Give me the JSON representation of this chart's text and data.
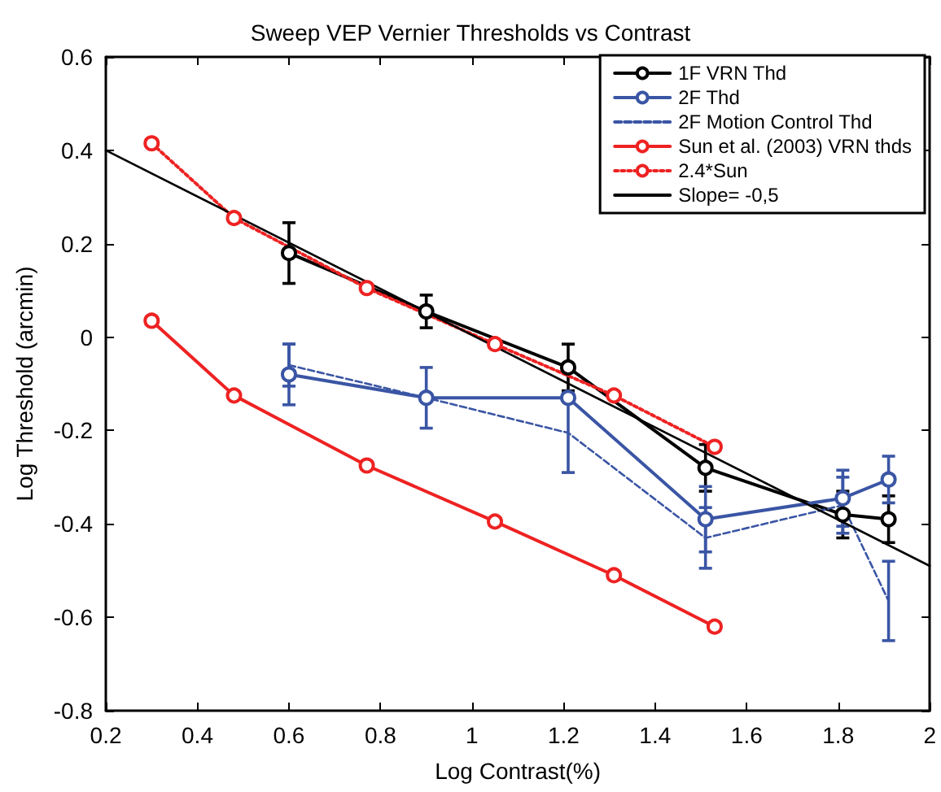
{
  "chart_data": {
    "type": "line",
    "title": "Sweep VEP Vernier Thresholds vs Contrast",
    "xlabel": "Log Contrast(%)",
    "ylabel": "Log Threshold (arcmin)",
    "xlim": [
      0.2,
      2
    ],
    "xticks": [
      0.2,
      0.4,
      0.6,
      0.8,
      1,
      1.2,
      1.4,
      1.6,
      1.8,
      2
    ],
    "ylim": [
      -0.8,
      0.6
    ],
    "yticks": [
      -0.8,
      -0.6,
      -0.4,
      -0.2,
      0,
      0.2,
      0.4,
      0.6
    ],
    "grid": false,
    "legend": "top right",
    "marker": "circle",
    "line_style": "solid",
    "series": [
      {
        "name": "1F VRN Thd",
        "color": "#000000",
        "x": [
          0.6,
          0.9,
          1.21,
          1.51,
          1.81,
          1.91
        ],
        "values": [
          0.18,
          0.055,
          -0.065,
          -0.28,
          -0.38,
          -0.39
        ],
        "errors": [
          0.065,
          0.035,
          0.05,
          0.05,
          0.05,
          0.05
        ]
      },
      {
        "name": "2F Thd",
        "color": "#3a55a4",
        "x": [
          0.6,
          0.9,
          1.21,
          1.51,
          1.81,
          1.91
        ],
        "values": [
          -0.08,
          -0.13,
          -0.13,
          -0.39,
          -0.345,
          -0.305
        ],
        "errors": [
          0.065,
          0.065,
          null,
          0.07,
          0.06,
          0.05
        ]
      },
      {
        "name": "2F Motion Control Thd",
        "color": "#3a55a4",
        "marker": "none",
        "line_style": "dashed",
        "x": [
          0.6,
          0.9,
          1.21,
          1.51,
          1.81,
          1.91
        ],
        "values": [
          -0.06,
          -0.13,
          -0.205,
          -0.43,
          -0.36,
          -0.565
        ],
        "errors": [
          0.045,
          null,
          0.085,
          0.065,
          0.06,
          0.085
        ]
      },
      {
        "name": "Sun et al. (2003) VRN thds",
        "color": "#ee2222",
        "x": [
          0.3,
          0.48,
          0.77,
          1.05,
          1.31,
          1.53
        ],
        "values": [
          0.035,
          -0.125,
          -0.275,
          -0.395,
          -0.51,
          -0.62
        ]
      },
      {
        "name": "2.4*Sun",
        "color": "#ee2222",
        "line_style": "dotted",
        "x": [
          0.3,
          0.48,
          0.77,
          1.05,
          1.31,
          1.53
        ],
        "values": [
          0.415,
          0.255,
          0.105,
          -0.015,
          -0.125,
          -0.235
        ]
      },
      {
        "name": "Slope= -0,5",
        "color": "#000000",
        "marker": "none",
        "x": [
          0.2,
          2
        ],
        "values": [
          0.4,
          -0.49
        ]
      }
    ]
  }
}
